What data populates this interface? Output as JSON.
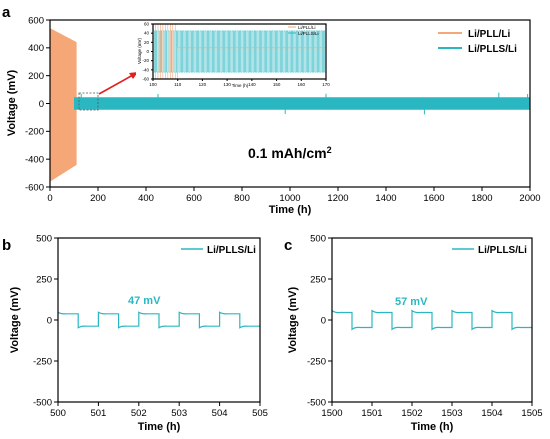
{
  "colors": {
    "orange": "#F5A778",
    "cyan": "#2BB7C2",
    "red": "#E02020"
  },
  "chart_data": [
    {
      "panel": "a",
      "type": "line",
      "xlabel": "Time (h)",
      "ylabel": "Voltage (mV)",
      "xlim": [
        0,
        2000
      ],
      "ylim": [
        -600,
        600
      ],
      "x_ticks": [
        "0",
        "200",
        "400",
        "600",
        "800",
        "1000",
        "1200",
        "1400",
        "1600",
        "1800",
        "2000"
      ],
      "y_ticks": [
        "600",
        "400",
        "200",
        "0",
        "-200",
        "-400",
        "-600"
      ],
      "annotation": "0.1 mAh/cm",
      "annotation_sup": "2",
      "series": [
        {
          "name": "Li/PLL/Li",
          "color": "#F5A778",
          "x_range": [
            0,
            110
          ],
          "amplitude_start_mV": 540,
          "amplitude_end_mV": 440
        },
        {
          "name": "Li/PLLS/Li",
          "color": "#2BB7C2",
          "x_range": [
            100,
            2000
          ],
          "amplitude_mV": 45
        }
      ],
      "inset": {
        "xlabel": "Time (h)",
        "ylabel": "Voltage (mV)",
        "xlim": [
          100,
          170
        ],
        "ylim": [
          -60,
          60
        ],
        "x_ticks": [
          "100",
          "110",
          "120",
          "130",
          "140",
          "150",
          "160",
          "170"
        ],
        "y_ticks": [
          "60",
          "40",
          "20",
          "0",
          "-20",
          "-40",
          "-60"
        ],
        "legend": [
          "Li/PLL/Li",
          "Li/PLLS/Li"
        ]
      }
    },
    {
      "panel": "b",
      "type": "line",
      "xlabel": "Time (h)",
      "ylabel": "Voltage (mV)",
      "xlim": [
        500,
        505
      ],
      "ylim": [
        -500,
        500
      ],
      "x_ticks": [
        "500",
        "501",
        "502",
        "503",
        "504",
        "505"
      ],
      "y_ticks": [
        "500",
        "250",
        "0",
        "-250",
        "-500"
      ],
      "annotation": "47 mV",
      "series": [
        {
          "name": "Li/PLLS/Li",
          "color": "#2BB7C2",
          "amplitude_mV": 47,
          "period_h": 1
        }
      ]
    },
    {
      "panel": "c",
      "type": "line",
      "xlabel": "Time (h)",
      "ylabel": "Voltage (mV)",
      "xlim": [
        1500,
        1505
      ],
      "ylim": [
        -500,
        500
      ],
      "x_ticks": [
        "1500",
        "1501",
        "1502",
        "1503",
        "1504",
        "1505"
      ],
      "y_ticks": [
        "500",
        "250",
        "0",
        "-250",
        "-500"
      ],
      "annotation": "57 mV",
      "series": [
        {
          "name": "Li/PLLS/Li",
          "color": "#2BB7C2",
          "amplitude_mV": 57,
          "period_h": 1
        }
      ]
    }
  ]
}
